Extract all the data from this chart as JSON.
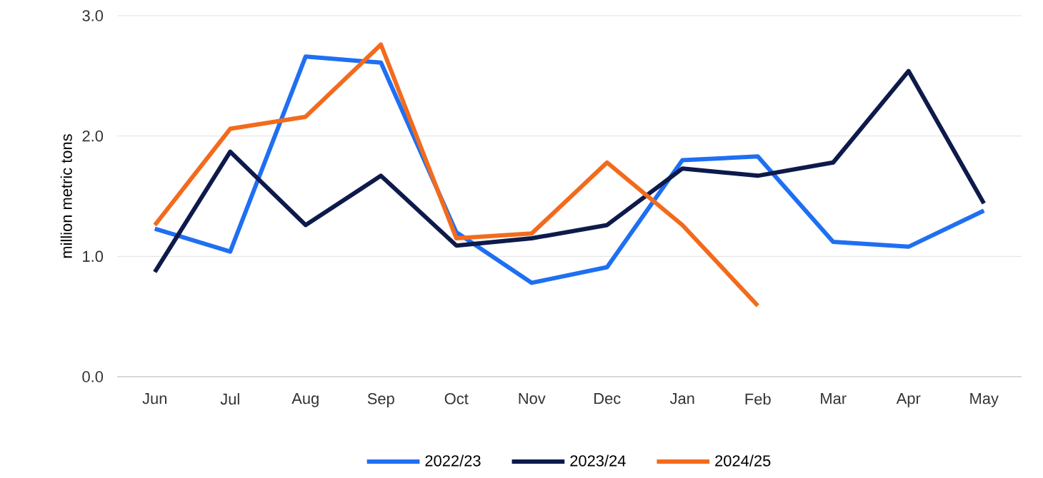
{
  "chart_data": {
    "type": "line",
    "ylabel": "million metric tons",
    "categories": [
      "Jun",
      "Jul",
      "Aug",
      "Sep",
      "Oct",
      "Nov",
      "Dec",
      "Jan",
      "Feb",
      "Mar",
      "Apr",
      "May"
    ],
    "series": [
      {
        "name": "2022/23",
        "color": "#1f6ff2",
        "values": [
          1.23,
          1.04,
          2.66,
          2.61,
          1.2,
          0.78,
          0.91,
          1.8,
          1.83,
          1.12,
          1.08,
          1.38
        ]
      },
      {
        "name": "2023/24",
        "color": "#0d1a4b",
        "values": [
          0.87,
          1.87,
          1.26,
          1.67,
          1.09,
          1.15,
          1.26,
          1.73,
          1.67,
          1.78,
          2.54,
          1.44
        ]
      },
      {
        "name": "2024/25",
        "color": "#f26b1d",
        "values": [
          1.26,
          2.06,
          2.16,
          2.76,
          1.15,
          1.19,
          1.78,
          1.26,
          0.59,
          null,
          null,
          null
        ]
      }
    ],
    "ylim": [
      0,
      3
    ],
    "yticks": [
      {
        "value": 0,
        "label": "0.0"
      },
      {
        "value": 1,
        "label": "1.0"
      },
      {
        "value": 2,
        "label": "2.0"
      },
      {
        "value": 3,
        "label": "3.0"
      }
    ],
    "grid": "y",
    "legend": "bottom",
    "marker": "none",
    "line_style": "solid"
  }
}
